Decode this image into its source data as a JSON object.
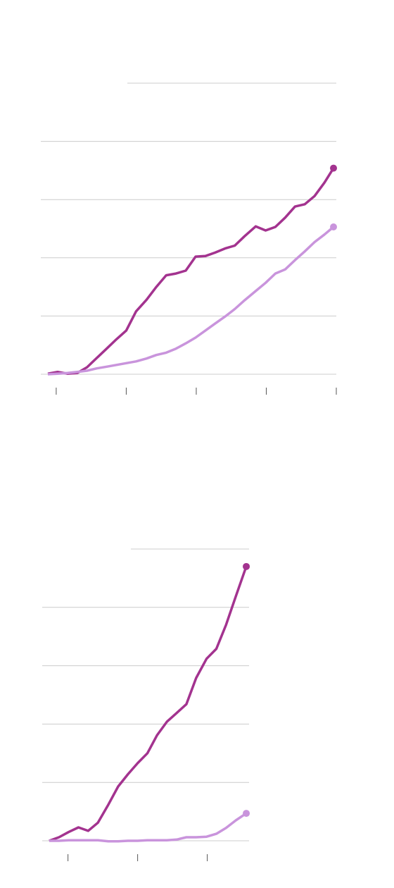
{
  "chart_data": [
    {
      "type": "line",
      "x": [
        -0.12,
        0.02,
        0.16,
        0.3,
        0.44,
        0.58,
        0.72,
        0.86,
        1.0,
        1.14,
        1.29,
        1.43,
        1.57,
        1.71,
        1.85,
        1.99,
        2.13,
        2.27,
        2.41,
        2.55,
        2.69,
        2.85,
        2.99,
        3.13,
        3.27,
        3.41,
        3.55,
        3.69,
        3.83,
        3.96
      ],
      "series": [
        {
          "color": "#a3338f",
          "values": [
            0.01,
            0.04,
            0.01,
            0.02,
            0.12,
            0.28,
            0.44,
            0.6,
            0.75,
            1.08,
            1.28,
            1.5,
            1.7,
            1.73,
            1.78,
            2.02,
            2.03,
            2.09,
            2.16,
            2.21,
            2.37,
            2.54,
            2.47,
            2.53,
            2.69,
            2.88,
            2.92,
            3.06,
            3.29,
            3.54
          ]
        },
        {
          "color": "#c994dc",
          "values": [
            0,
            0.01,
            0.02,
            0.04,
            0.06,
            0.1,
            0.13,
            0.16,
            0.19,
            0.22,
            0.27,
            0.33,
            0.37,
            0.44,
            0.53,
            0.63,
            0.75,
            0.87,
            0.99,
            1.12,
            1.27,
            1.43,
            1.57,
            1.73,
            1.8,
            1.96,
            2.11,
            2.27,
            2.4,
            2.53
          ]
        }
      ],
      "xlim": [
        -0.22,
        4
      ],
      "xticks": [
        0,
        1,
        2,
        3,
        4
      ],
      "ylim": [
        0,
        5
      ],
      "yticks": [
        0,
        1,
        2,
        3,
        4,
        5
      ],
      "grid": true
    },
    {
      "type": "line",
      "x": [
        -0.27,
        -0.13,
        0.01,
        0.15,
        0.29,
        0.43,
        0.58,
        0.72,
        0.86,
        1.0,
        1.14,
        1.28,
        1.42,
        1.56,
        1.7,
        1.84,
        1.99,
        2.13,
        2.27,
        2.41,
        2.56
      ],
      "series": [
        {
          "color": "#a3338f",
          "values": [
            0,
            0.06,
            0.15,
            0.23,
            0.17,
            0.31,
            0.62,
            0.93,
            1.14,
            1.33,
            1.5,
            1.81,
            2.04,
            2.19,
            2.34,
            2.79,
            3.12,
            3.29,
            3.7,
            4.19,
            4.7
          ]
        },
        {
          "color": "#c994dc",
          "values": [
            0,
            0,
            0.01,
            0.01,
            0.01,
            0.01,
            -0.01,
            -0.01,
            0,
            0,
            0.01,
            0.01,
            0.01,
            0.02,
            0.06,
            0.06,
            0.07,
            0.12,
            0.22,
            0.35,
            0.47
          ]
        }
      ],
      "xlim": [
        -0.37,
        2.6
      ],
      "xticks": [
        0,
        1,
        2
      ],
      "ylim": [
        0,
        5
      ],
      "yticks": [
        0,
        1,
        2,
        3,
        4,
        5
      ],
      "grid": true
    }
  ]
}
